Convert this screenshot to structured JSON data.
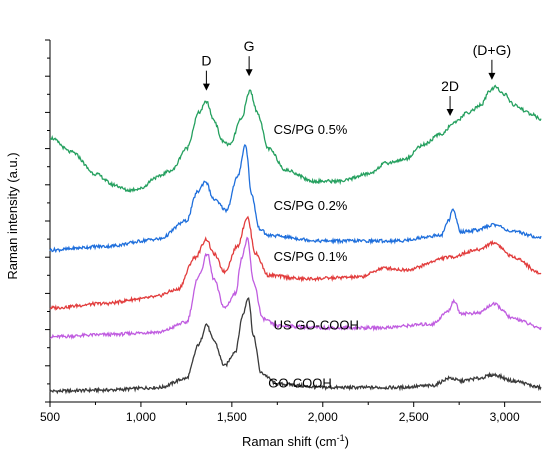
{
  "chart_data": {
    "type": "line",
    "xlabel": "Raman shift (cm",
    "xlabel_sup": "-1",
    "xlabel_close": ")",
    "ylabel": "Raman intensity (a.u.)",
    "xlim": [
      500,
      3200
    ],
    "ylim": [
      0,
      100
    ],
    "x_ticks": [
      500,
      1000,
      1500,
      2000,
      2500,
      3000
    ],
    "x_tick_labels": [
      "500",
      "1,000",
      "1,500",
      "2,000",
      "2,500",
      "3,000"
    ],
    "y_ticks_unlabeled": true,
    "series": [
      {
        "name": "GO-COOH",
        "color": "#3a3a3a",
        "base": 3,
        "points": [
          [
            500,
            3
          ],
          [
            800,
            3.3
          ],
          [
            1100,
            4
          ],
          [
            1250,
            6.5
          ],
          [
            1320,
            16
          ],
          [
            1360,
            21.5
          ],
          [
            1400,
            17
          ],
          [
            1460,
            10
          ],
          [
            1520,
            14
          ],
          [
            1560,
            24
          ],
          [
            1590,
            29
          ],
          [
            1620,
            18
          ],
          [
            1660,
            8
          ],
          [
            1750,
            5
          ],
          [
            2000,
            4
          ],
          [
            2400,
            4
          ],
          [
            2600,
            4.5
          ],
          [
            2700,
            6.6
          ],
          [
            2760,
            5.8
          ],
          [
            2850,
            6.5
          ],
          [
            2940,
            7.5
          ],
          [
            3050,
            5.8
          ],
          [
            3200,
            4
          ]
        ]
      },
      {
        "name": "US GO-COOH",
        "color": "#c05de0",
        "base": 18,
        "points": [
          [
            500,
            18
          ],
          [
            800,
            18.6
          ],
          [
            1100,
            19.3
          ],
          [
            1250,
            22
          ],
          [
            1320,
            35
          ],
          [
            1365,
            41
          ],
          [
            1400,
            34
          ],
          [
            1460,
            26
          ],
          [
            1520,
            30
          ],
          [
            1555,
            40
          ],
          [
            1585,
            45
          ],
          [
            1620,
            33
          ],
          [
            1670,
            23
          ],
          [
            1750,
            21
          ],
          [
            2000,
            20.5
          ],
          [
            2300,
            20.5
          ],
          [
            2600,
            21.5
          ],
          [
            2690,
            25
          ],
          [
            2720,
            28
          ],
          [
            2760,
            24.5
          ],
          [
            2850,
            24.5
          ],
          [
            2940,
            27
          ],
          [
            3050,
            23
          ],
          [
            3200,
            20.5
          ]
        ]
      },
      {
        "name": "CS/PG 0.1%",
        "color": "#e23d3d",
        "base": 26,
        "points": [
          [
            500,
            26
          ],
          [
            800,
            27.2
          ],
          [
            1000,
            28.5
          ],
          [
            1070,
            29
          ],
          [
            1200,
            31
          ],
          [
            1300,
            40
          ],
          [
            1360,
            45
          ],
          [
            1400,
            41
          ],
          [
            1460,
            36
          ],
          [
            1530,
            43
          ],
          [
            1585,
            51
          ],
          [
            1630,
            41
          ],
          [
            1700,
            35
          ],
          [
            1900,
            34
          ],
          [
            2200,
            34.5
          ],
          [
            2340,
            37
          ],
          [
            2450,
            36.5
          ],
          [
            2700,
            40
          ],
          [
            2850,
            42
          ],
          [
            2940,
            44
          ],
          [
            3050,
            40
          ],
          [
            3200,
            35.5
          ]
        ]
      },
      {
        "name": "CS/PG 0.2%",
        "color": "#1f6fdc",
        "base": 42,
        "points": [
          [
            500,
            42
          ],
          [
            800,
            43
          ],
          [
            1100,
            45
          ],
          [
            1250,
            50
          ],
          [
            1310,
            58
          ],
          [
            1355,
            61
          ],
          [
            1400,
            56
          ],
          [
            1470,
            53
          ],
          [
            1530,
            62
          ],
          [
            1575,
            71
          ],
          [
            1610,
            57
          ],
          [
            1650,
            48
          ],
          [
            1700,
            46
          ],
          [
            2000,
            44.5
          ],
          [
            2400,
            44.5
          ],
          [
            2650,
            46
          ],
          [
            2690,
            50
          ],
          [
            2715,
            53
          ],
          [
            2760,
            47
          ],
          [
            2850,
            47.5
          ],
          [
            2940,
            49
          ],
          [
            3050,
            47
          ],
          [
            3200,
            45.5
          ]
        ]
      },
      {
        "name": "CS/PG 0.5%",
        "color": "#25a05f",
        "base": 73,
        "points": [
          [
            500,
            73
          ],
          [
            620,
            69
          ],
          [
            750,
            63
          ],
          [
            850,
            60
          ],
          [
            930,
            58.5
          ],
          [
            1000,
            59
          ],
          [
            1080,
            62
          ],
          [
            1170,
            64
          ],
          [
            1250,
            70
          ],
          [
            1320,
            80
          ],
          [
            1360,
            83
          ],
          [
            1400,
            78
          ],
          [
            1450,
            72
          ],
          [
            1490,
            71
          ],
          [
            1550,
            78
          ],
          [
            1600,
            86
          ],
          [
            1640,
            80
          ],
          [
            1700,
            70
          ],
          [
            1800,
            64
          ],
          [
            1950,
            61
          ],
          [
            2100,
            61
          ],
          [
            2250,
            63
          ],
          [
            2350,
            66
          ],
          [
            2450,
            67
          ],
          [
            2550,
            71
          ],
          [
            2650,
            74
          ],
          [
            2720,
            77
          ],
          [
            2800,
            80
          ],
          [
            2870,
            82
          ],
          [
            2920,
            86
          ],
          [
            2950,
            87
          ],
          [
            3000,
            85
          ],
          [
            3050,
            82
          ],
          [
            3150,
            79.5
          ],
          [
            3200,
            78
          ]
        ]
      }
    ],
    "annotations": {
      "series_labels": [
        {
          "series": "CS/PG 0.5%",
          "text": "CS/PG 0.5%",
          "x": 1730,
          "y": 74
        },
        {
          "series": "CS/PG 0.2%",
          "text": "CS/PG 0.2%",
          "x": 1730,
          "y": 53
        },
        {
          "series": "CS/PG 0.1%",
          "text": "CS/PG 0.1%",
          "x": 1730,
          "y": 39
        },
        {
          "series": "US GO-COOH",
          "text": "US GO-COOH",
          "x": 1730,
          "y": 20
        },
        {
          "series": "GO-COOH",
          "text": "GO-COOH",
          "x": 1700,
          "y": 4
        }
      ],
      "peaks": [
        {
          "text": "D",
          "x": 1360,
          "y": 86
        },
        {
          "text": "G",
          "x": 1595,
          "y": 90
        },
        {
          "text": "2D",
          "x": 2700,
          "y": 79
        },
        {
          "text": "(D+G)",
          "x": 2930,
          "y": 89
        }
      ]
    }
  }
}
